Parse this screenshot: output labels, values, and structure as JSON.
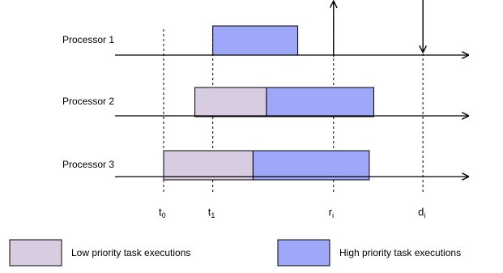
{
  "processors": [
    {
      "label": "Processor 1",
      "bars": [
        {
          "priority": "high",
          "start": 1.1,
          "end": 3.0
        }
      ]
    },
    {
      "label": "Processor 2",
      "bars": [
        {
          "priority": "low",
          "start": 0.7,
          "end": 2.3
        },
        {
          "priority": "high",
          "start": 2.3,
          "end": 4.7
        }
      ]
    },
    {
      "label": "Processor 3",
      "bars": [
        {
          "priority": "low",
          "start": 0.0,
          "end": 2.0
        },
        {
          "priority": "high",
          "start": 2.0,
          "end": 4.6
        }
      ]
    }
  ],
  "time_marks": [
    {
      "id": "t0",
      "base": "t",
      "sub": "0",
      "t": 0.0
    },
    {
      "id": "t1",
      "base": "t",
      "sub": "1",
      "t": 1.1
    },
    {
      "id": "ri",
      "base": "r",
      "sub": "i",
      "t": 3.8,
      "arrow": "up"
    },
    {
      "id": "di",
      "base": "d",
      "sub": "i",
      "t": 5.8,
      "arrow": "down"
    }
  ],
  "legend": {
    "low_label": "Low priority task executions",
    "high_label": "High priority task executions"
  },
  "colors": {
    "low": "#d8cce0",
    "high": "#9fa8f8",
    "stroke": "#000000"
  }
}
